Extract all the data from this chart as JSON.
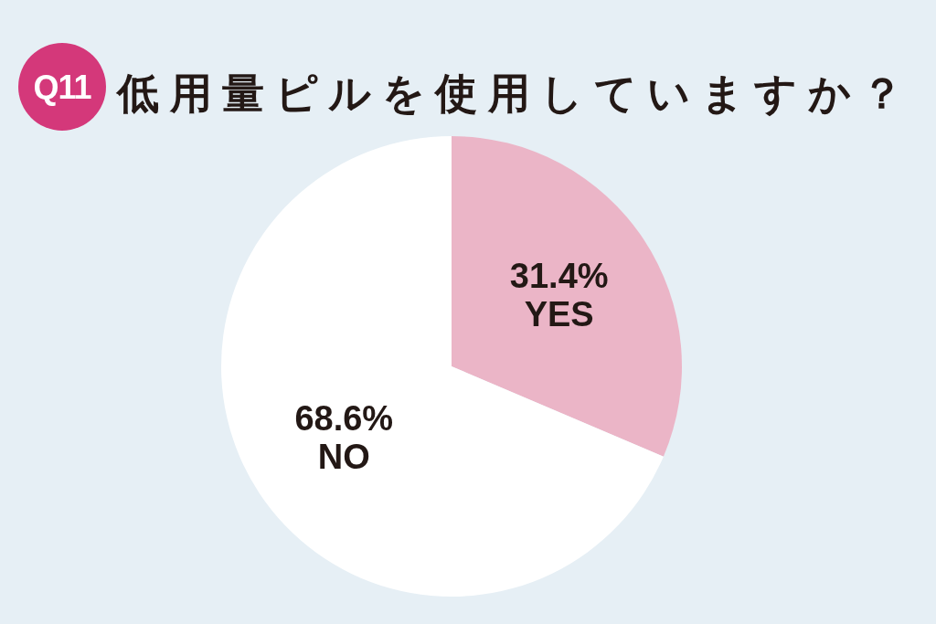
{
  "chart_data": {
    "type": "pie",
    "title": "低用量ピルを使用していますか？",
    "annotations": [
      "Q11"
    ],
    "categories": [
      "YES",
      "NO"
    ],
    "values": [
      31.4,
      68.6
    ],
    "colors": [
      "#ebb5c7",
      "#ffffff"
    ],
    "value_labels": [
      "31.4%",
      "68.6%"
    ]
  }
}
